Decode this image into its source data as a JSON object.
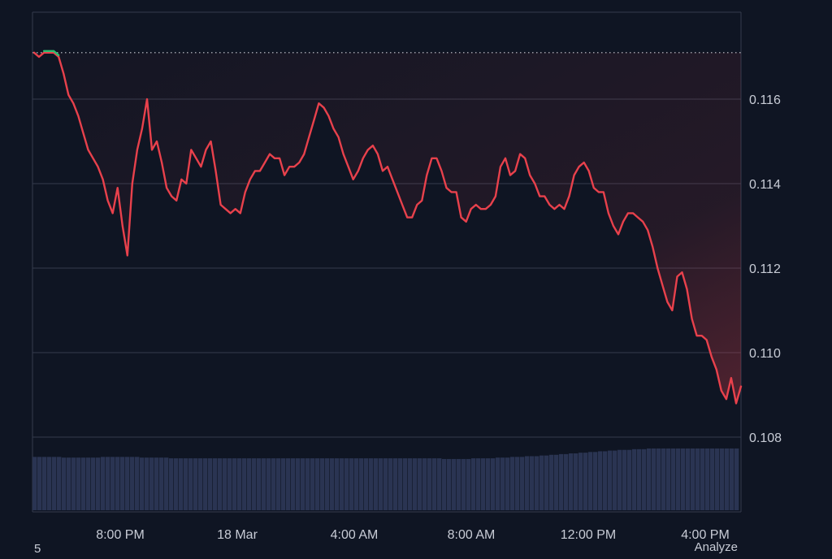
{
  "chart_data": {
    "type": "line",
    "title": "",
    "xlabel": "",
    "ylabel": "",
    "x_tick_labels": [
      "8:00 PM",
      "18 Mar",
      "4:00 AM",
      "8:00 AM",
      "12:00 PM",
      "4:00 PM"
    ],
    "y_tick_labels": [
      "0.116",
      "0.114",
      "0.112",
      "0.110",
      "0.108"
    ],
    "ylim": [
      0.108,
      0.118
    ],
    "reference_price": 0.1171,
    "grid": true,
    "legend": "none",
    "series": [
      {
        "values": [
          0.1171,
          0.117,
          0.1171,
          0.1171,
          0.1171,
          0.117,
          0.1166,
          0.1161,
          0.1159,
          0.1156,
          0.1152,
          0.1148,
          0.1146,
          0.1144,
          0.1141,
          0.1136,
          0.1133,
          0.1139,
          0.113,
          0.1123,
          0.114,
          0.1148,
          0.1153,
          0.116,
          0.1148,
          0.115,
          0.1145,
          0.1139,
          0.1137,
          0.1136,
          0.1141,
          0.114,
          0.1148,
          0.1146,
          0.1144,
          0.1148,
          0.115,
          0.1143,
          0.1135,
          0.1134,
          0.1133,
          0.1134,
          0.1133,
          0.1138,
          0.1141,
          0.1143,
          0.1143,
          0.1145,
          0.1147,
          0.1146,
          0.1146,
          0.1142,
          0.1144,
          0.1144,
          0.1145,
          0.1147,
          0.1151,
          0.1155,
          0.1159,
          0.1158,
          0.1156,
          0.1153,
          0.1151,
          0.1147,
          0.1144,
          0.1141,
          0.1143,
          0.1146,
          0.1148,
          0.1149,
          0.1147,
          0.1143,
          0.1144,
          0.1141,
          0.1138,
          0.1135,
          0.1132,
          0.1132,
          0.1135,
          0.1136,
          0.1142,
          0.1146,
          0.1146,
          0.1143,
          0.1139,
          0.1138,
          0.1138,
          0.1132,
          0.1131,
          0.1134,
          0.1135,
          0.1134,
          0.1134,
          0.1135,
          0.1137,
          0.1144,
          0.1146,
          0.1142,
          0.1143,
          0.1147,
          0.1146,
          0.1142,
          0.114,
          0.1137,
          0.1137,
          0.1135,
          0.1134,
          0.1135,
          0.1134,
          0.1137,
          0.1142,
          0.1144,
          0.1145,
          0.1143,
          0.1139,
          0.1138,
          0.1138,
          0.1133,
          0.113,
          0.1128,
          0.1131,
          0.1133,
          0.1133,
          0.1132,
          0.1131,
          0.1129,
          0.1125,
          0.112,
          0.1116,
          0.1112,
          0.111,
          0.1118,
          0.1119,
          0.1115,
          0.1108,
          0.1104,
          0.1104,
          0.1103,
          0.1099,
          0.1096,
          0.1091,
          0.1089,
          0.1094,
          0.1088,
          0.1092
        ]
      }
    ],
    "volume": [
      0.76,
      0.76,
      0.76,
      0.76,
      0.76,
      0.76,
      0.75,
      0.75,
      0.75,
      0.75,
      0.75,
      0.75,
      0.75,
      0.75,
      0.76,
      0.76,
      0.76,
      0.76,
      0.76,
      0.76,
      0.76,
      0.76,
      0.75,
      0.75,
      0.75,
      0.75,
      0.75,
      0.75,
      0.74,
      0.74,
      0.74,
      0.74,
      0.74,
      0.74,
      0.74,
      0.74,
      0.74,
      0.74,
      0.74,
      0.74,
      0.74,
      0.74,
      0.74,
      0.74,
      0.74,
      0.74,
      0.74,
      0.74,
      0.74,
      0.74,
      0.74,
      0.74,
      0.74,
      0.74,
      0.74,
      0.74,
      0.74,
      0.74,
      0.74,
      0.74,
      0.74,
      0.74,
      0.74,
      0.74,
      0.74,
      0.74,
      0.74,
      0.74,
      0.74,
      0.74,
      0.74,
      0.74,
      0.74,
      0.74,
      0.74,
      0.74,
      0.74,
      0.74,
      0.74,
      0.74,
      0.74,
      0.74,
      0.74,
      0.74,
      0.73,
      0.73,
      0.73,
      0.73,
      0.73,
      0.73,
      0.74,
      0.74,
      0.74,
      0.74,
      0.74,
      0.75,
      0.75,
      0.75,
      0.76,
      0.76,
      0.76,
      0.77,
      0.77,
      0.77,
      0.78,
      0.78,
      0.79,
      0.79,
      0.8,
      0.8,
      0.81,
      0.81,
      0.82,
      0.82,
      0.83,
      0.83,
      0.84,
      0.84,
      0.85,
      0.85,
      0.86,
      0.86,
      0.86,
      0.87,
      0.87,
      0.87,
      0.88,
      0.88,
      0.88,
      0.88,
      0.88,
      0.88,
      0.88,
      0.88,
      0.88,
      0.88,
      0.88,
      0.88,
      0.88,
      0.88,
      0.88,
      0.88,
      0.88,
      0.88,
      0.88
    ],
    "colors": {
      "background": "#0f1523",
      "line_down": "#e8414c",
      "line_up": "#2fbf71",
      "grid": "#343b4d",
      "axis_text": "#c8ccd6",
      "volume": "#2a3452",
      "reference_line": "#c9cdd6"
    }
  },
  "footer": {
    "left_text": "5",
    "right_text": "Analyze"
  }
}
